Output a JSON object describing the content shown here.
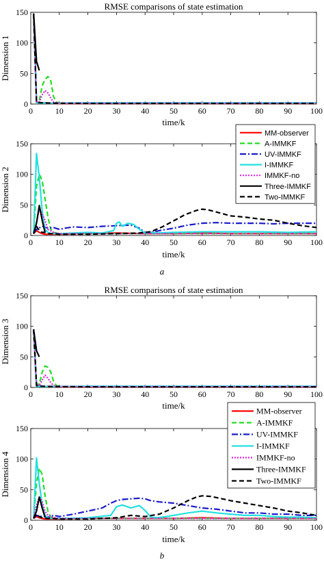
{
  "figure": {
    "panel_labels": [
      "a",
      "b"
    ]
  },
  "colors": {
    "MM-observer": "#ff0000",
    "A-IMMKF": "#22dd22",
    "UV-IMMKF": "#1a1acc",
    "I-IMMKF": "#22e0e0",
    "IMMKF-no": "#dd22dd",
    "Three-IMMKF": "#000000",
    "Two-IMMKF": "#000000"
  },
  "chart_data": [
    {
      "type": "line",
      "title": "RMSE comparisons of state estimation",
      "xlabel": "time/k",
      "ylabel": "Dimension 1",
      "xlim": [
        0,
        100
      ],
      "ylim": [
        0,
        150
      ],
      "xticks": [
        "0",
        "10",
        "20",
        "30",
        "40",
        "50",
        "60",
        "70",
        "80",
        "90",
        "100"
      ],
      "yticks": [
        "0",
        "50",
        "100",
        "150"
      ],
      "legend": null,
      "series": [
        {
          "name": "MM-observer",
          "x": [
            1,
            2,
            3,
            5,
            10,
            20,
            40,
            60,
            80,
            100
          ],
          "y": [
            148,
            3,
            2,
            1.5,
            1,
            1,
            1,
            1,
            1,
            1
          ]
        },
        {
          "name": "A-IMMKF",
          "x": [
            1,
            2,
            3,
            4,
            5,
            6,
            7,
            8,
            9,
            10,
            12,
            20,
            40,
            60,
            80,
            100
          ],
          "y": [
            148,
            6,
            5,
            30,
            40,
            45,
            38,
            12,
            3,
            2,
            1.5,
            1.5,
            1.5,
            1.5,
            1.5,
            1.5
          ]
        },
        {
          "name": "UV-IMMKF",
          "x": [
            1,
            2,
            4,
            8,
            20,
            40,
            60,
            80,
            100
          ],
          "y": [
            148,
            3,
            2,
            1.5,
            1.5,
            1.5,
            1.5,
            1.5,
            1.5
          ]
        },
        {
          "name": "I-IMMKF",
          "x": [
            1,
            2,
            4,
            8,
            20,
            40,
            60,
            80,
            100
          ],
          "y": [
            148,
            2,
            1.5,
            1.5,
            2,
            2,
            2,
            2,
            2
          ]
        },
        {
          "name": "IMMKF-no",
          "x": [
            1,
            2,
            3,
            4,
            5,
            6,
            7,
            8,
            10,
            20,
            40,
            60,
            80,
            100
          ],
          "y": [
            148,
            4,
            3,
            15,
            22,
            18,
            10,
            3,
            1.5,
            1.5,
            1.5,
            1.5,
            1.5,
            1.5
          ]
        },
        {
          "name": "Three-IMMKF",
          "x": [
            1,
            2,
            3
          ],
          "y": [
            148,
            70,
            55
          ]
        },
        {
          "name": "Two-IMMKF",
          "x": [
            1,
            2,
            4,
            8,
            20,
            40,
            60,
            80,
            100
          ],
          "y": [
            148,
            3,
            2,
            1.5,
            1,
            1,
            1,
            1,
            1
          ]
        }
      ]
    },
    {
      "type": "line",
      "xlabel": "time/k",
      "ylabel": "Dimension 2",
      "xlim": [
        0,
        100
      ],
      "ylim": [
        0,
        150
      ],
      "xticks": [
        "0",
        "10",
        "20",
        "30",
        "40",
        "50",
        "60",
        "70",
        "80",
        "90",
        "100"
      ],
      "yticks": [
        "0",
        "50",
        "100",
        "150"
      ],
      "legend": {
        "position": "top-right",
        "font": "sans",
        "entries": [
          "MM-observer",
          "A-IMMKF",
          "UV-IMMKF",
          "I-IMMKF",
          "IMMKF-no",
          "Three-IMMKF",
          "Two-IMMKF"
        ]
      },
      "series": [
        {
          "name": "MM-observer",
          "x": [
            1,
            2,
            3,
            4,
            5,
            10,
            20,
            30,
            40,
            50,
            60,
            70,
            80,
            90,
            100
          ],
          "y": [
            3,
            8,
            5,
            3,
            2,
            2,
            3,
            4,
            3,
            3,
            4,
            3,
            3,
            3,
            3
          ]
        },
        {
          "name": "A-IMMKF",
          "x": [
            1,
            2,
            3,
            4,
            5,
            6,
            7,
            8,
            10,
            12,
            20,
            40,
            60,
            80,
            100
          ],
          "y": [
            3,
            80,
            100,
            90,
            60,
            30,
            10,
            5,
            3,
            3,
            3,
            3,
            3,
            3,
            3
          ]
        },
        {
          "name": "UV-IMMKF",
          "x": [
            1,
            2,
            4,
            6,
            8,
            10,
            12,
            15,
            20,
            25,
            30,
            35,
            38,
            40,
            41,
            45,
            50,
            55,
            60,
            65,
            70,
            75,
            80,
            85,
            90,
            95,
            100
          ],
          "y": [
            3,
            10,
            15,
            12,
            13,
            10,
            12,
            14,
            13,
            15,
            16,
            17,
            12,
            5,
            4,
            8,
            12,
            17,
            20,
            21,
            20,
            20,
            20,
            19,
            20,
            20,
            20
          ]
        },
        {
          "name": "I-IMMKF",
          "x": [
            1,
            2,
            3,
            4,
            5,
            6,
            7,
            10,
            15,
            20,
            25,
            29,
            30,
            31,
            32,
            34,
            36,
            38,
            40,
            42,
            44,
            50,
            60,
            70,
            80,
            90,
            100
          ],
          "y": [
            3,
            134,
            95,
            40,
            10,
            5,
            3,
            3,
            4,
            5,
            4,
            8,
            20,
            22,
            15,
            20,
            18,
            10,
            4,
            5,
            4,
            5,
            6,
            6,
            6,
            5,
            6
          ]
        },
        {
          "name": "IMMKF-no",
          "x": [
            1,
            2,
            3,
            4,
            5,
            6,
            8,
            10,
            20,
            40,
            60,
            80,
            100
          ],
          "y": [
            3,
            20,
            45,
            35,
            25,
            10,
            5,
            3,
            3,
            3,
            3,
            3,
            3
          ]
        },
        {
          "name": "Three-IMMKF",
          "x": [
            1,
            2,
            3,
            4,
            5
          ],
          "y": [
            3,
            20,
            49,
            25,
            5
          ]
        },
        {
          "name": "Two-IMMKF",
          "x": [
            1,
            2,
            3,
            4,
            5,
            6,
            8,
            10,
            20,
            30,
            38,
            42,
            46,
            50,
            54,
            58,
            60,
            62,
            66,
            70,
            75,
            80,
            85,
            90,
            95,
            100
          ],
          "y": [
            3,
            15,
            8,
            5,
            5,
            3,
            3,
            2,
            2,
            3,
            4,
            6,
            14,
            24,
            34,
            41,
            43,
            42,
            37,
            32,
            30,
            27,
            25,
            20,
            16,
            13
          ]
        }
      ]
    },
    {
      "type": "line",
      "title": "RMSE comparisons of state estimation",
      "xlabel": "time/k",
      "ylabel": "Dimension 3",
      "xlim": [
        0,
        100
      ],
      "ylim": [
        0,
        150
      ],
      "xticks": [
        "0",
        "10",
        "20",
        "30",
        "40",
        "50",
        "60",
        "70",
        "80",
        "90",
        "100"
      ],
      "yticks": [
        "0",
        "50",
        "100",
        "150"
      ],
      "legend": null,
      "series": [
        {
          "name": "MM-observer",
          "x": [
            1,
            2,
            3,
            5,
            10,
            20,
            40,
            60,
            80,
            100
          ],
          "y": [
            95,
            3,
            2,
            1.5,
            1,
            1,
            1,
            1,
            1,
            1
          ]
        },
        {
          "name": "A-IMMKF",
          "x": [
            1,
            2,
            3,
            4,
            5,
            6,
            7,
            8,
            9,
            10,
            12,
            20,
            40,
            60,
            80,
            100
          ],
          "y": [
            95,
            6,
            5,
            25,
            35,
            33,
            25,
            10,
            3,
            2,
            1.5,
            1.5,
            1.5,
            1.5,
            1.5,
            1.5
          ]
        },
        {
          "name": "UV-IMMKF",
          "x": [
            1,
            2,
            4,
            8,
            20,
            40,
            60,
            80,
            100
          ],
          "y": [
            95,
            3,
            2,
            1.5,
            1.5,
            1.5,
            1.5,
            1.5,
            1.5
          ]
        },
        {
          "name": "I-IMMKF",
          "x": [
            1,
            2,
            4,
            8,
            20,
            40,
            60,
            80,
            100
          ],
          "y": [
            95,
            2,
            1.5,
            1.5,
            2,
            2,
            2,
            2,
            2
          ]
        },
        {
          "name": "IMMKF-no",
          "x": [
            1,
            2,
            3,
            4,
            5,
            6,
            7,
            8,
            10,
            20,
            40,
            60,
            80,
            100
          ],
          "y": [
            92,
            4,
            3,
            12,
            20,
            15,
            8,
            3,
            1.5,
            1.5,
            1.5,
            1.5,
            1.5,
            1.5
          ]
        },
        {
          "name": "Three-IMMKF",
          "x": [
            1,
            2,
            3
          ],
          "y": [
            95,
            60,
            50
          ]
        },
        {
          "name": "Two-IMMKF",
          "x": [
            1,
            2,
            4,
            8,
            20,
            40,
            60,
            80,
            100
          ],
          "y": [
            95,
            3,
            2,
            1.5,
            1,
            1,
            1,
            1,
            1
          ]
        }
      ]
    },
    {
      "type": "line",
      "xlabel": "time/k",
      "ylabel": "Dimension 4",
      "xlim": [
        0,
        100
      ],
      "ylim": [
        0,
        150
      ],
      "xticks": [
        "0",
        "10",
        "20",
        "30",
        "40",
        "50",
        "60",
        "70",
        "80",
        "90",
        "100"
      ],
      "yticks": [
        "0",
        "50",
        "100",
        "150"
      ],
      "legend": {
        "position": "top-right",
        "font": "serif",
        "entries": [
          "MM-observer",
          "A-IMMKF",
          "UV-IMMKF",
          "I-IMMKF",
          "IMMKF-no",
          "Three-IMMKF",
          "Two-IMMKF"
        ]
      },
      "series": [
        {
          "name": "MM-observer",
          "x": [
            1,
            2,
            3,
            4,
            5,
            10,
            20,
            30,
            40,
            50,
            60,
            70,
            80,
            90,
            100
          ],
          "y": [
            3,
            6,
            4,
            3,
            2,
            2,
            3,
            3,
            3,
            3,
            4,
            3,
            3,
            3,
            3
          ]
        },
        {
          "name": "A-IMMKF",
          "x": [
            1,
            2,
            3,
            4,
            5,
            6,
            7,
            8,
            10,
            12,
            20,
            40,
            60,
            80,
            100
          ],
          "y": [
            3,
            60,
            85,
            75,
            40,
            15,
            5,
            3,
            3,
            3,
            3,
            3,
            3,
            3,
            3
          ]
        },
        {
          "name": "UV-IMMKF",
          "x": [
            1,
            2,
            4,
            6,
            8,
            10,
            15,
            20,
            25,
            28,
            30,
            32,
            35,
            38,
            40,
            42,
            45,
            50,
            55,
            60,
            65,
            70,
            75,
            80,
            85,
            90,
            95,
            100
          ],
          "y": [
            3,
            8,
            6,
            5,
            8,
            6,
            10,
            15,
            20,
            28,
            32,
            34,
            35,
            36,
            35,
            32,
            30,
            28,
            24,
            20,
            18,
            15,
            12,
            12,
            10,
            10,
            8,
            8
          ]
        },
        {
          "name": "I-IMMKF",
          "x": [
            1,
            2,
            3,
            4,
            5,
            6,
            7,
            10,
            20,
            28,
            30,
            32,
            35,
            38,
            40,
            42,
            44,
            46,
            50,
            55,
            60,
            65,
            70,
            75,
            80,
            85,
            90,
            95,
            100
          ],
          "y": [
            3,
            102,
            60,
            25,
            8,
            4,
            3,
            3,
            4,
            8,
            22,
            25,
            20,
            24,
            16,
            5,
            4,
            5,
            8,
            12,
            15,
            12,
            10,
            8,
            8,
            6,
            5,
            5,
            4
          ]
        },
        {
          "name": "IMMKF-no",
          "x": [
            1,
            2,
            3,
            4,
            5,
            6,
            8,
            10,
            20,
            40,
            60,
            80,
            100
          ],
          "y": [
            3,
            25,
            38,
            30,
            15,
            8,
            4,
            3,
            3,
            3,
            3,
            3,
            3
          ]
        },
        {
          "name": "Three-IMMKF",
          "x": [
            1,
            2,
            3,
            4,
            5
          ],
          "y": [
            3,
            15,
            38,
            20,
            5
          ]
        },
        {
          "name": "Two-IMMKF",
          "x": [
            1,
            2,
            3,
            4,
            6,
            8,
            10,
            20,
            30,
            35,
            40,
            45,
            50,
            55,
            58,
            60,
            63,
            66,
            70,
            75,
            80,
            85,
            90,
            95,
            100
          ],
          "y": [
            3,
            10,
            6,
            4,
            3,
            3,
            2,
            2,
            4,
            8,
            6,
            10,
            20,
            32,
            38,
            40,
            39,
            36,
            32,
            28,
            24,
            20,
            15,
            12,
            8
          ]
        }
      ]
    }
  ]
}
